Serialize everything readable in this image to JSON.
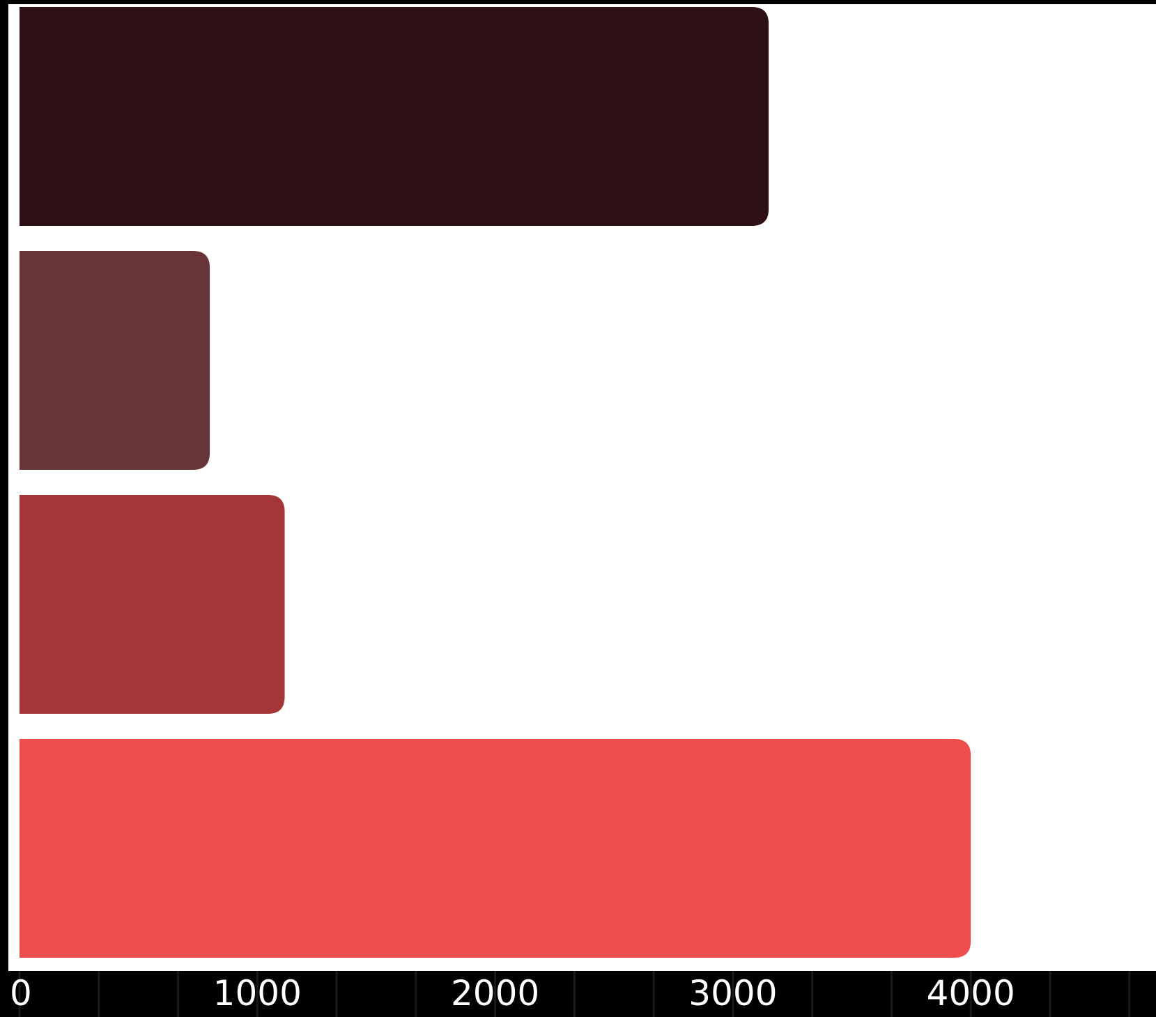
{
  "chart_data": {
    "type": "bar",
    "orientation": "horizontal",
    "categories": [
      "",
      "",
      "",
      ""
    ],
    "values": [
      3150,
      800,
      1115,
      4000
    ],
    "colors": [
      "#2d1013",
      "#673538",
      "#a53637",
      "#ef4e4e"
    ],
    "xlim": [
      0,
      4800
    ],
    "x_ticks": [
      0,
      1000,
      2000,
      3000,
      4000
    ],
    "x_tick_labels": [
      "0",
      "1000",
      "2000",
      "3000",
      "4000"
    ],
    "grid": false,
    "plot_background": "#ffffff",
    "page_background": "#000000",
    "title": "",
    "xlabel": "",
    "ylabel": ""
  }
}
